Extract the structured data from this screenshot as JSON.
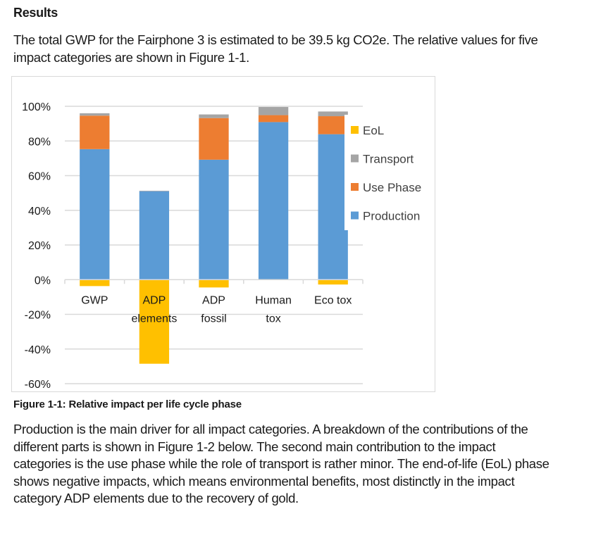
{
  "section": {
    "heading": "Results",
    "intro": "The total GWP for the Fairphone 3 is estimated to be 39.5 kg CO2e. The relative values for five impact categories are shown in Figure 1-1.",
    "caption": "Figure 1-1: Relative impact per life cycle phase",
    "body": "Production is the main driver for all impact categories. A breakdown of the contributions of the different parts is shown in Figure 1-2 below. The second main contribution to the impact categories is the use phase while the role of transport is rather minor. The end-of-life (EoL) phase shows negative impacts, which means environmental benefits, most distinctly in the impact category ADP elements due to the recovery of gold."
  },
  "chart_data": {
    "type": "bar",
    "stacked": true,
    "title": "",
    "xlabel": "",
    "ylabel": "",
    "ylim": [
      -60,
      100
    ],
    "yticks": [
      100,
      80,
      60,
      40,
      20,
      0,
      -20,
      -40,
      -60
    ],
    "ytick_labels": [
      "100%",
      "80%",
      "60%",
      "40%",
      "20%",
      "0%",
      "-20%",
      "-40%",
      "-60%"
    ],
    "grid": true,
    "legend_position": "right",
    "categories": [
      [
        "GWP"
      ],
      [
        "ADP",
        "elements"
      ],
      [
        "ADP",
        "fossil"
      ],
      [
        "Human",
        "tox"
      ],
      [
        "Eco tox"
      ]
    ],
    "series": [
      {
        "name": "Production",
        "color": "#5B9BD5",
        "values": [
          75.3,
          51.0,
          69.2,
          90.9,
          83.9
        ]
      },
      {
        "name": "Use Phase",
        "color": "#ED7D31",
        "values": [
          19.3,
          0.0,
          24.0,
          4.0,
          10.4
        ]
      },
      {
        "name": "Transport",
        "color": "#A5A5A5",
        "values": [
          1.4,
          0.3,
          2.1,
          4.7,
          2.7
        ]
      },
      {
        "name": "EoL",
        "color": "#FFC000",
        "values": [
          -3.7,
          -48.5,
          -4.5,
          0.0,
          -2.8
        ]
      }
    ],
    "legend_order": [
      "EoL",
      "Transport",
      "Use Phase",
      "Production"
    ]
  }
}
